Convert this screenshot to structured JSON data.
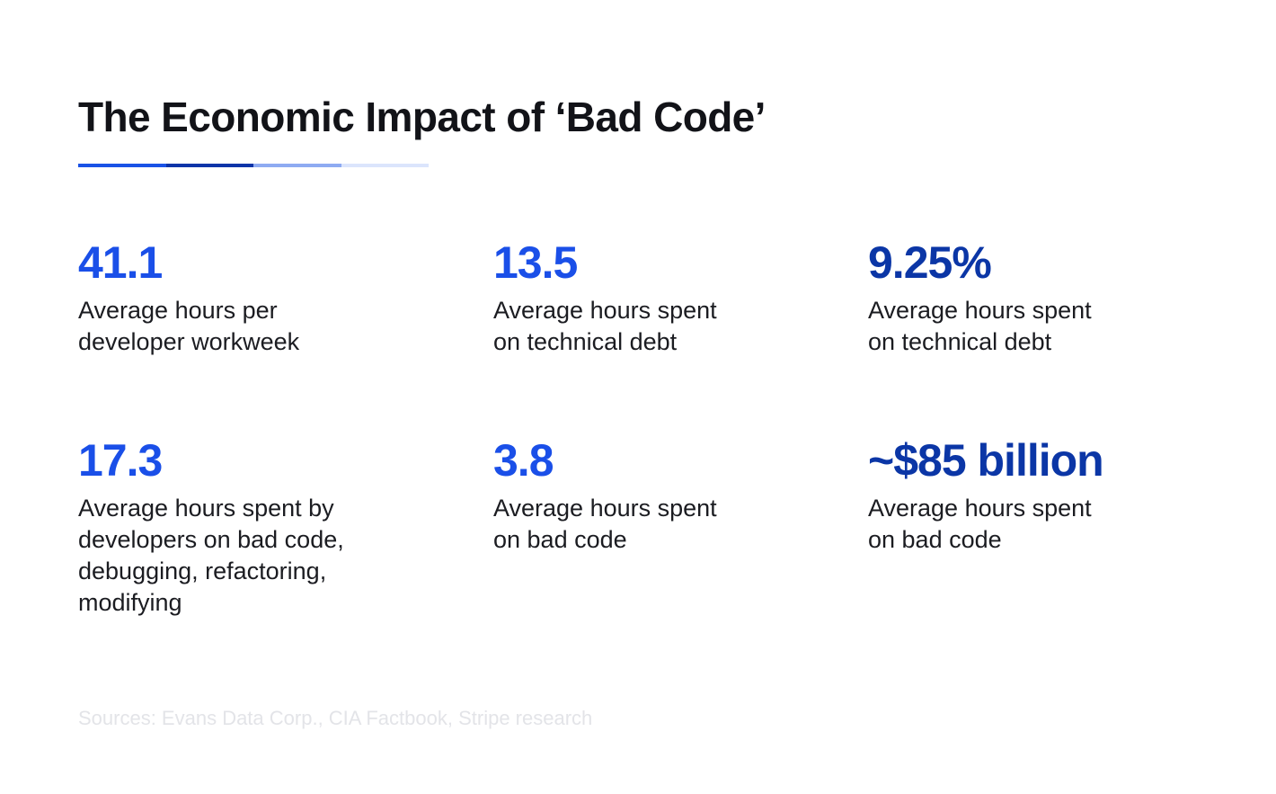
{
  "title": "The Economic Impact of ‘Bad Code’",
  "title_rule_colors": [
    "#1a52e6",
    "#0b34a8",
    "#8eabf2",
    "#dbe5fc"
  ],
  "stats": [
    {
      "value": "41.1",
      "label": "Average hours per\ndeveloper workweek",
      "value_color": "#1a4fe8"
    },
    {
      "value": "13.5",
      "label": "Average hours spent\non technical debt",
      "value_color": "#1a4fe8"
    },
    {
      "value": "9.25%",
      "label": "Average hours spent\non technical debt",
      "value_color": "#0b36a6"
    },
    {
      "value": "17.3",
      "label": "Average hours spent by\ndevelopers on bad code,\ndebugging, refactoring,\nmodifying",
      "value_color": "#1a4fe8"
    },
    {
      "value": "3.8",
      "label": "Average hours spent\non bad code",
      "value_color": "#1a4fe8"
    },
    {
      "value": "~$85 billion",
      "label": "Average hours spent\non bad code",
      "value_color": "#0b36a6"
    }
  ],
  "sources": "Sources: Evans Data Corp., CIA Factbook, Stripe research",
  "sources_color": "#e3e4e8"
}
